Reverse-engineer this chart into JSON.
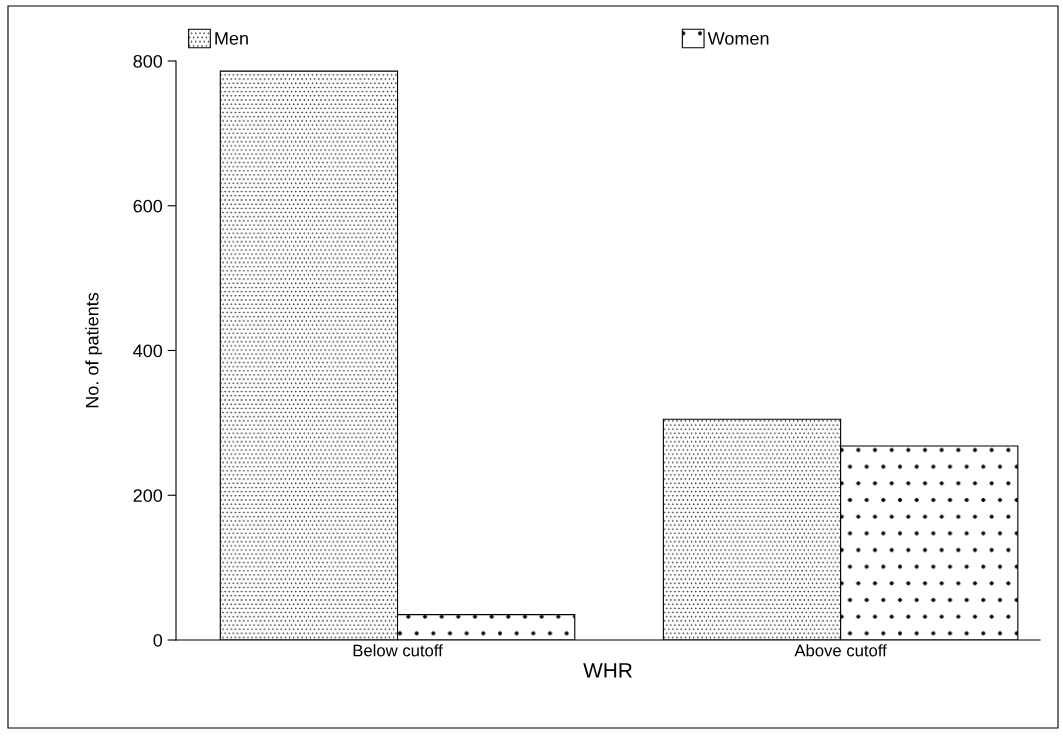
{
  "chart_data": {
    "type": "bar",
    "xlabel": "WHR",
    "ylabel": "No. of patients",
    "categories": [
      "Below cutoff",
      "Above cutoff"
    ],
    "series": [
      {
        "name": "Men",
        "color": "#000000",
        "values": [
          786,
          305
        ]
      },
      {
        "name": "Women",
        "color": "#000000",
        "values": [
          35,
          268
        ]
      }
    ],
    "ylim": [
      0,
      800
    ],
    "yticks": [
      0,
      200,
      400,
      600,
      800
    ],
    "grid": false,
    "legend": "top"
  }
}
